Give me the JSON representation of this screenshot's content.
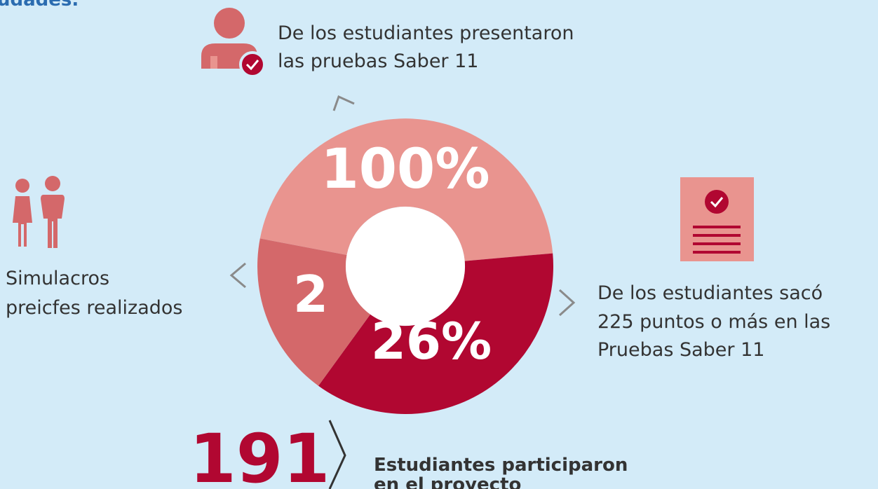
{
  "header": {
    "partial_text": "udades."
  },
  "donut": {
    "top": "100%",
    "left": "2",
    "bottom": "26%"
  },
  "stats": {
    "tests": {
      "lines": [
        "De los estudiantes presentaron",
        "las pruebas Saber 11"
      ]
    },
    "simulations": {
      "lines": [
        "Simulacros",
        "preicfes realizados"
      ]
    },
    "score": {
      "lines": [
        "De los estudiantes sacó",
        "225 puntos o más en las",
        "Pruebas Saber 11"
      ]
    },
    "participants": {
      "number": "191",
      "lines": [
        "Estudiantes participaron",
        "en el proyecto"
      ]
    }
  }
}
